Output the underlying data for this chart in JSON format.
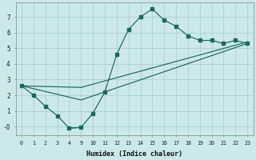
{
  "xlabel": "Humidex (Indice chaleur)",
  "bg_color": "#cce8e8",
  "grid_color": "#b0d4d4",
  "line_color": "#1a6b5a",
  "xlabels": [
    "0",
    "1",
    "2",
    "3",
    "4",
    "9",
    "10",
    "11",
    "12",
    "13",
    "14",
    "15",
    "16",
    "17",
    "18",
    "19",
    "20",
    "21",
    "22",
    "23"
  ],
  "yticks": [
    0,
    1,
    2,
    3,
    4,
    5,
    6,
    7
  ],
  "ylim": [
    -0.55,
    7.9
  ],
  "line1_xi": [
    0,
    1,
    2,
    3,
    4,
    5,
    6,
    7,
    8,
    9,
    10,
    11,
    12,
    13,
    14,
    15,
    16,
    17,
    18,
    19
  ],
  "line1_y": [
    2.6,
    2.0,
    1.3,
    0.7,
    -0.1,
    -0.05,
    0.85,
    2.2,
    4.6,
    6.2,
    7.0,
    7.5,
    6.8,
    6.4,
    5.8,
    5.5,
    5.5,
    5.3,
    5.5,
    5.3
  ],
  "line2_xi": [
    0,
    5,
    19
  ],
  "line2_y": [
    2.6,
    1.7,
    5.3
  ],
  "line3_xi": [
    0,
    5,
    19
  ],
  "line3_y": [
    2.6,
    2.5,
    5.4
  ],
  "line4_xi": [
    4,
    5
  ],
  "line4_y": [
    -0.1,
    -0.05
  ]
}
